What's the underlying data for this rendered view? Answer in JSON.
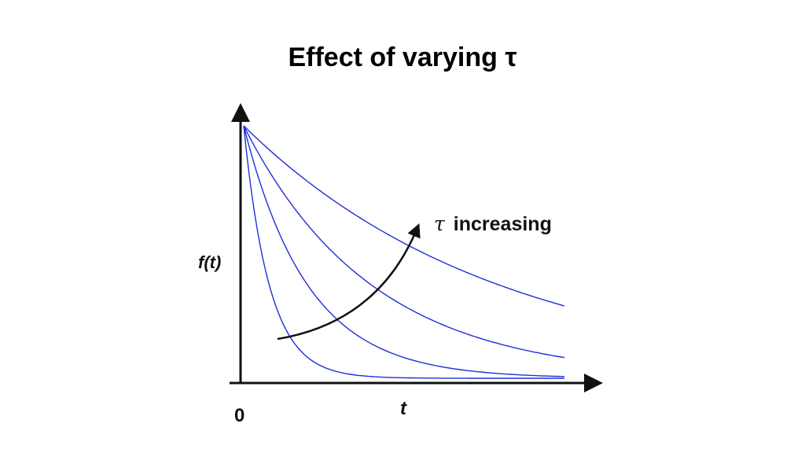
{
  "slide": {
    "title": "Effect of varying τ"
  },
  "chart_data": {
    "type": "line",
    "title": "",
    "xlabel": "t",
    "ylabel": "f(t)",
    "x_tick_labels": [
      "0"
    ],
    "xlim": [
      0,
      1
    ],
    "ylim": [
      0,
      1
    ],
    "grid": false,
    "colors": {
      "series": "#1f2fd6",
      "arrow": "#111111",
      "axes": "#111111"
    },
    "series": [
      {
        "tau": 0.08,
        "x": [
          0,
          0.05,
          0.1,
          0.15,
          0.2,
          0.3,
          0.4,
          0.5,
          0.6,
          0.7,
          0.8,
          0.9,
          1.0
        ],
        "values": [
          1.0,
          0.535,
          0.287,
          0.153,
          0.082,
          0.024,
          0.007,
          0.002,
          0.0006,
          0.0002,
          0.0,
          0.0,
          0.0
        ]
      },
      {
        "tau": 0.2,
        "x": [
          0,
          0.05,
          0.1,
          0.15,
          0.2,
          0.3,
          0.4,
          0.5,
          0.6,
          0.7,
          0.8,
          0.9,
          1.0
        ],
        "values": [
          1.0,
          0.779,
          0.607,
          0.472,
          0.368,
          0.223,
          0.135,
          0.082,
          0.05,
          0.03,
          0.018,
          0.011,
          0.007
        ]
      },
      {
        "tau": 0.4,
        "x": [
          0,
          0.05,
          0.1,
          0.15,
          0.2,
          0.3,
          0.4,
          0.5,
          0.6,
          0.7,
          0.8,
          0.9,
          1.0
        ],
        "values": [
          1.0,
          0.882,
          0.779,
          0.687,
          0.607,
          0.472,
          0.368,
          0.287,
          0.223,
          0.174,
          0.135,
          0.105,
          0.082
        ]
      },
      {
        "tau": 0.8,
        "x": [
          0,
          0.05,
          0.1,
          0.15,
          0.2,
          0.3,
          0.4,
          0.5,
          0.6,
          0.7,
          0.8,
          0.9,
          1.0
        ],
        "values": [
          1.0,
          0.939,
          0.882,
          0.829,
          0.779,
          0.687,
          0.607,
          0.535,
          0.472,
          0.417,
          0.368,
          0.325,
          0.287
        ]
      }
    ],
    "annotations": [
      {
        "text": "τ increasing",
        "symbol": "τ",
        "label": "increasing"
      }
    ]
  }
}
